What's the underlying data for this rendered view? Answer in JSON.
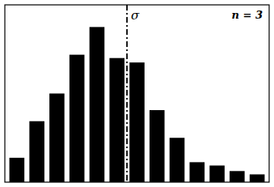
{
  "chart_data": {
    "type": "bar",
    "categories": [
      null,
      null,
      null,
      null,
      null,
      null,
      null,
      null,
      null,
      null,
      null,
      null,
      null
    ],
    "values": [
      22,
      55,
      80,
      115,
      140,
      112,
      108,
      65,
      40,
      18,
      15,
      10,
      7
    ],
    "color": "#000000",
    "ylim": [
      0,
      160
    ],
    "tick_labels": false,
    "annotations": [
      {
        "text": "σ",
        "x": 5.5,
        "line_style": "dashdot"
      },
      {
        "text": "n = 3"
      }
    ]
  }
}
